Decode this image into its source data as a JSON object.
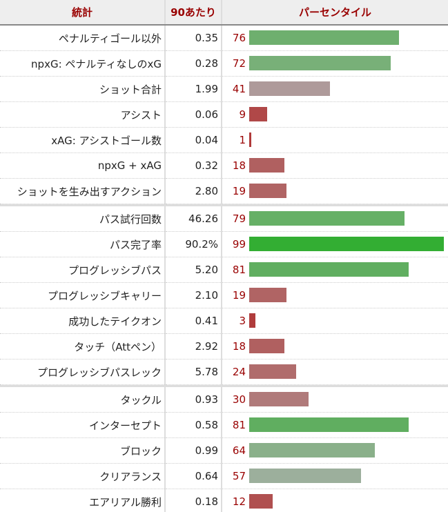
{
  "header": {
    "stat": "統計",
    "per90": "90あたり",
    "percentile": "パーセンタイル"
  },
  "groups": [
    [
      {
        "stat": "ペナルティゴール以外",
        "per90": "0.35",
        "percentile": 76,
        "color": "#6eaf6e"
      },
      {
        "stat": "npxG: ペナルティなしのxG",
        "per90": "0.28",
        "percentile": 72,
        "color": "#78b078"
      },
      {
        "stat": "ショット合計",
        "per90": "1.99",
        "percentile": 41,
        "color": "#ae9a9a"
      },
      {
        "stat": "アシスト",
        "per90": "0.06",
        "percentile": 9,
        "color": "#b04848"
      },
      {
        "stat": "xAG: アシストゴール数",
        "per90": "0.04",
        "percentile": 1,
        "color": "#b03a3a"
      },
      {
        "stat": "npxG + xAG",
        "per90": "0.32",
        "percentile": 18,
        "color": "#b06060"
      },
      {
        "stat": "ショットを生み出すアクション",
        "per90": "2.80",
        "percentile": 19,
        "color": "#b06464"
      }
    ],
    [
      {
        "stat": "パス試行回数",
        "per90": "46.26",
        "percentile": 79,
        "color": "#66b066"
      },
      {
        "stat": "パス完了率",
        "per90": "90.2%",
        "percentile": 99,
        "color": "#33ae33"
      },
      {
        "stat": "プログレッシブパス",
        "per90": "5.20",
        "percentile": 81,
        "color": "#60ae60"
      },
      {
        "stat": "プログレッシブキャリー",
        "per90": "2.10",
        "percentile": 19,
        "color": "#b06464"
      },
      {
        "stat": "成功したテイクオン",
        "per90": "0.41",
        "percentile": 3,
        "color": "#b03c3c"
      },
      {
        "stat": "タッチ（Attペン）",
        "per90": "2.92",
        "percentile": 18,
        "color": "#b06060"
      },
      {
        "stat": "プログレッシブパスレック",
        "per90": "5.78",
        "percentile": 24,
        "color": "#b06c6c"
      }
    ],
    [
      {
        "stat": "タックル",
        "per90": "0.93",
        "percentile": 30,
        "color": "#b07a7a"
      },
      {
        "stat": "インターセプト",
        "per90": "0.58",
        "percentile": 81,
        "color": "#60ae60"
      },
      {
        "stat": "ブロック",
        "per90": "0.99",
        "percentile": 64,
        "color": "#8ab08a"
      },
      {
        "stat": "クリアランス",
        "per90": "0.64",
        "percentile": 57,
        "color": "#9caf9c"
      },
      {
        "stat": "エアリアル勝利",
        "per90": "0.18",
        "percentile": 12,
        "color": "#b05050"
      }
    ]
  ]
}
